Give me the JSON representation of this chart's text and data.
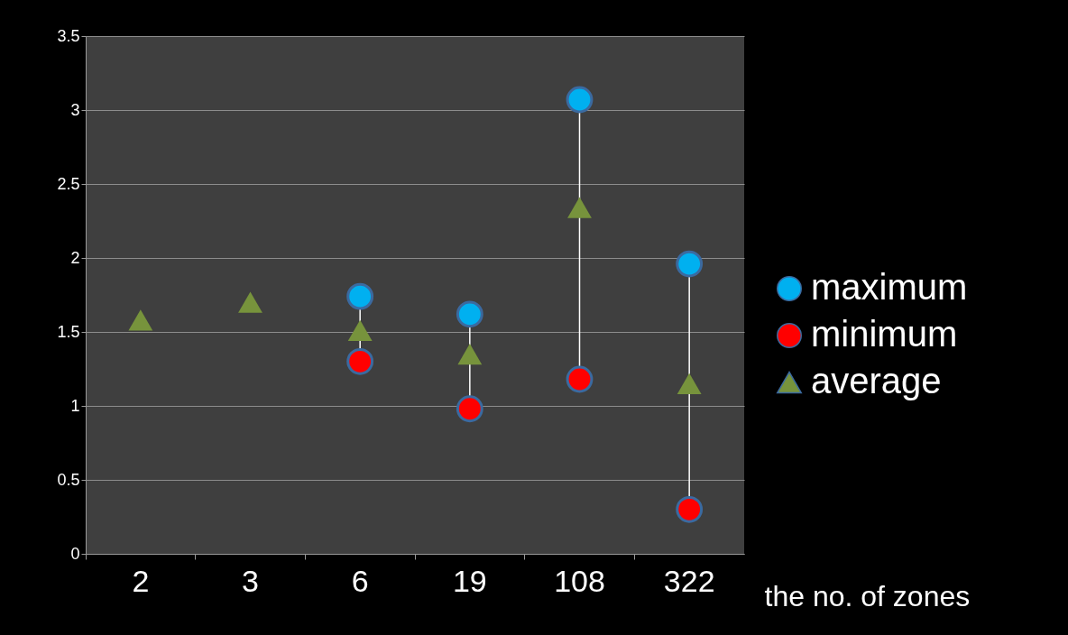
{
  "chart_data": {
    "type": "scatter",
    "xlabel": "the no. of zones",
    "categories": [
      "2",
      "3",
      "6",
      "19",
      "108",
      "322"
    ],
    "series": [
      {
        "name": "maximum",
        "color": "#00b0f0",
        "marker": "circle",
        "values": [
          null,
          null,
          1.74,
          1.62,
          3.07,
          1.96
        ]
      },
      {
        "name": "minimum",
        "color": "#ff0000",
        "marker": "circle",
        "values": [
          null,
          null,
          1.3,
          0.98,
          1.18,
          0.3
        ]
      },
      {
        "name": "average",
        "color": "#77933c",
        "marker": "triangle",
        "values": [
          1.58,
          1.7,
          1.51,
          1.35,
          2.34,
          1.15
        ]
      }
    ],
    "ylim": [
      0,
      3.5
    ],
    "yticks": [
      0,
      0.5,
      1,
      1.5,
      2,
      2.5,
      3,
      3.5
    ],
    "grid": "y",
    "legend": "right"
  }
}
